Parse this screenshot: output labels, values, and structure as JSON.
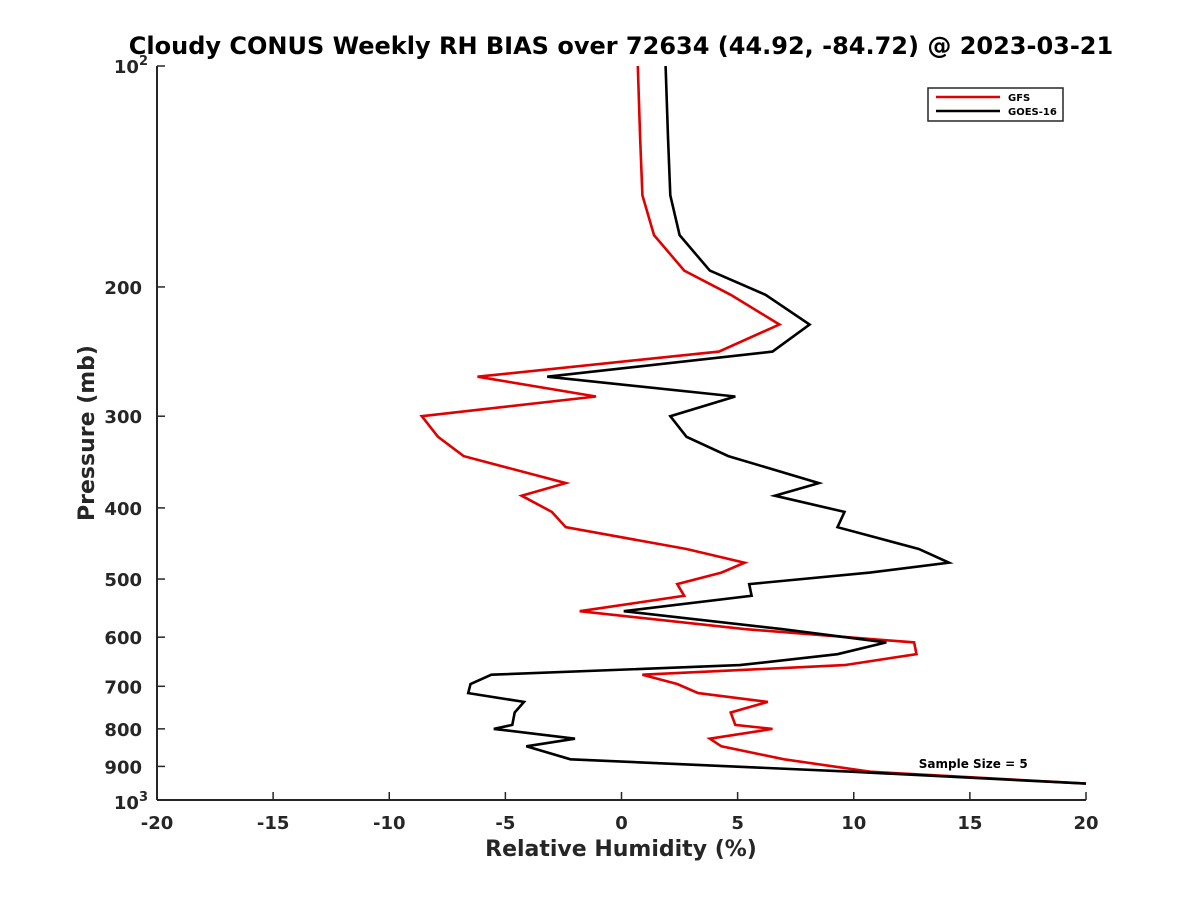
{
  "chart_data": {
    "type": "line",
    "title": "Cloudy CONUS Weekly RH BIAS over 72634 (44.92, -84.72) @ 2023-03-21",
    "xlabel": "Relative Humidity (%)",
    "ylabel": "Pressure (mb)",
    "xlim": [
      -20,
      20
    ],
    "ylim": [
      100,
      1000
    ],
    "y_scale": "log",
    "y_reversed": true,
    "grid": false,
    "legend_position": "top-right",
    "x_ticks": [
      -20,
      -15,
      -10,
      -5,
      0,
      5,
      10,
      15,
      20
    ],
    "x_tick_labels": [
      "-20",
      "-15",
      "-10",
      "-5",
      "0",
      "5",
      "10",
      "15",
      "20"
    ],
    "y_ticks": [
      200,
      300,
      400,
      500,
      600,
      700,
      800,
      900
    ],
    "y_tick_labels": [
      "200",
      "300",
      "400",
      "500",
      "600",
      "700",
      "800",
      "900"
    ],
    "y_end_labels": {
      "top_base": "10",
      "top_exp": "2",
      "bottom_base": "10",
      "bottom_exp": "3"
    },
    "series": [
      {
        "name": "GFS",
        "color": "#e00000",
        "points": [
          [
            0.7,
            100
          ],
          [
            0.8,
            125
          ],
          [
            0.9,
            150
          ],
          [
            1.4,
            170
          ],
          [
            2.7,
            190
          ],
          [
            4.7,
            205
          ],
          [
            6.8,
            225
          ],
          [
            4.2,
            245
          ],
          [
            -6.2,
            265
          ],
          [
            -1.1,
            282
          ],
          [
            -8.6,
            300
          ],
          [
            -7.9,
            320
          ],
          [
            -6.8,
            340
          ],
          [
            -2.4,
            370
          ],
          [
            -4.3,
            385
          ],
          [
            -3.0,
            405
          ],
          [
            -2.4,
            425
          ],
          [
            2.8,
            455
          ],
          [
            5.3,
            475
          ],
          [
            4.3,
            490
          ],
          [
            2.4,
            508
          ],
          [
            2.7,
            527
          ],
          [
            -1.8,
            553
          ],
          [
            5.3,
            585
          ],
          [
            12.6,
            610
          ],
          [
            12.7,
            633
          ],
          [
            9.6,
            655
          ],
          [
            0.9,
            675
          ],
          [
            2.4,
            695
          ],
          [
            3.3,
            715
          ],
          [
            6.3,
            735
          ],
          [
            4.7,
            760
          ],
          [
            4.9,
            790
          ],
          [
            6.5,
            800
          ],
          [
            3.8,
            825
          ],
          [
            4.3,
            845
          ],
          [
            7.0,
            880
          ],
          [
            10.7,
            915
          ],
          [
            20.0,
            950
          ]
        ]
      },
      {
        "name": "GOES-16",
        "color": "#000000",
        "points": [
          [
            1.9,
            100
          ],
          [
            2.0,
            125
          ],
          [
            2.1,
            150
          ],
          [
            2.5,
            170
          ],
          [
            3.8,
            190
          ],
          [
            6.2,
            205
          ],
          [
            8.1,
            225
          ],
          [
            6.5,
            245
          ],
          [
            -3.2,
            265
          ],
          [
            4.9,
            282
          ],
          [
            2.1,
            300
          ],
          [
            2.8,
            320
          ],
          [
            4.6,
            340
          ],
          [
            8.5,
            370
          ],
          [
            6.6,
            385
          ],
          [
            9.6,
            405
          ],
          [
            9.3,
            425
          ],
          [
            12.8,
            455
          ],
          [
            14.1,
            475
          ],
          [
            10.7,
            490
          ],
          [
            5.5,
            508
          ],
          [
            5.6,
            527
          ],
          [
            0.1,
            553
          ],
          [
            6.9,
            585
          ],
          [
            11.4,
            610
          ],
          [
            9.3,
            633
          ],
          [
            5.1,
            655
          ],
          [
            -5.6,
            675
          ],
          [
            -6.5,
            695
          ],
          [
            -6.6,
            715
          ],
          [
            -4.2,
            735
          ],
          [
            -4.6,
            760
          ],
          [
            -4.7,
            790
          ],
          [
            -5.5,
            800
          ],
          [
            -2.0,
            825
          ],
          [
            -4.1,
            845
          ],
          [
            -2.2,
            880
          ],
          [
            9.9,
            915
          ],
          [
            20.0,
            950
          ]
        ]
      }
    ],
    "annotations": [
      {
        "text": "Sample Size = 5",
        "x": 12.8,
        "y": 905
      }
    ]
  }
}
